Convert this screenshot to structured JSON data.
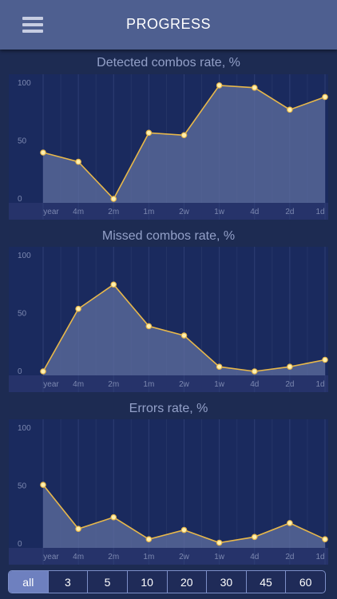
{
  "header": {
    "title": "PROGRESS",
    "menu_icon": "hamburger-menu-icon"
  },
  "chart_data": [
    {
      "type": "area",
      "title": "Detected combos rate, %",
      "categories": [
        "year",
        "4m",
        "2m",
        "1m",
        "2w",
        "1w",
        "4d",
        "2d",
        "1d"
      ],
      "y_ticks": [
        "100",
        "50",
        "0"
      ],
      "ylim": [
        0,
        100
      ],
      "values": [
        40,
        32,
        0,
        57,
        55,
        98,
        96,
        77,
        88
      ]
    },
    {
      "type": "area",
      "title": "Missed combos rate, %",
      "categories": [
        "year",
        "4m",
        "2m",
        "1m",
        "2w",
        "1w",
        "4d",
        "2d",
        "1d"
      ],
      "y_ticks": [
        "100",
        "50",
        "0"
      ],
      "ylim": [
        0,
        100
      ],
      "values": [
        0,
        54,
        75,
        39,
        31,
        4,
        0,
        4,
        10
      ]
    },
    {
      "type": "area",
      "title": "Errors rate, %",
      "categories": [
        "year",
        "4m",
        "2m",
        "1m",
        "2w",
        "1w",
        "4d",
        "2d",
        "1d"
      ],
      "y_ticks": [
        "100",
        "50",
        "0"
      ],
      "ylim": [
        0,
        100
      ],
      "values": [
        51,
        13,
        23,
        4,
        12,
        1,
        6,
        18,
        4
      ]
    }
  ],
  "filter": {
    "options": [
      "all",
      "3",
      "5",
      "10",
      "20",
      "30",
      "45",
      "60"
    ],
    "selected": "all"
  },
  "colors": {
    "background": "#1d2b52",
    "header": "#4e5f90",
    "line": "#e8b84a",
    "point": "#fff0b0",
    "area": "#5c6b9c",
    "selected_segment": "#6e80bf"
  }
}
